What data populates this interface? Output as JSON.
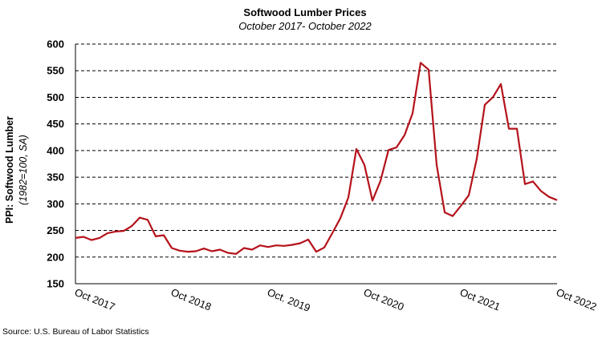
{
  "chart_data": {
    "type": "line",
    "title": "Softwood Lumber Prices",
    "subtitle": "October 2017- October 2022",
    "ylabel": "PPI: Softwood Lumber",
    "ylabel_note": "(1982=100, SA)",
    "source": "Source: U.S. Bureau of Labor Statistics",
    "ylim": [
      150,
      600
    ],
    "yticks": [
      150,
      200,
      250,
      300,
      350,
      400,
      450,
      500,
      550,
      600
    ],
    "xlabels": [
      {
        "label": "Oct 2017",
        "index": 0
      },
      {
        "label": "Oct 2018",
        "index": 12
      },
      {
        "label": "Oct. 2019",
        "index": 24
      },
      {
        "label": "Oct 2020",
        "index": 36
      },
      {
        "label": "Oct 2021",
        "index": 48
      },
      {
        "label": "Oct 2022",
        "index": 60
      }
    ],
    "grid": "horizontal dashed",
    "line_color": "#b5121b",
    "series": [
      {
        "values": [
          236,
          238,
          232,
          236,
          245,
          248,
          249,
          258,
          274,
          270,
          239,
          241,
          217,
          212,
          210,
          211,
          216,
          211,
          214,
          208,
          206,
          217,
          214,
          222,
          219,
          222,
          221,
          223,
          226,
          233,
          210,
          218,
          245,
          273,
          312,
          403,
          373,
          306,
          343,
          401,
          406,
          429,
          470,
          565,
          552,
          373,
          284,
          277,
          296,
          316,
          385,
          486,
          500,
          525,
          441,
          441,
          337,
          342,
          324,
          313,
          307
        ]
      }
    ]
  }
}
